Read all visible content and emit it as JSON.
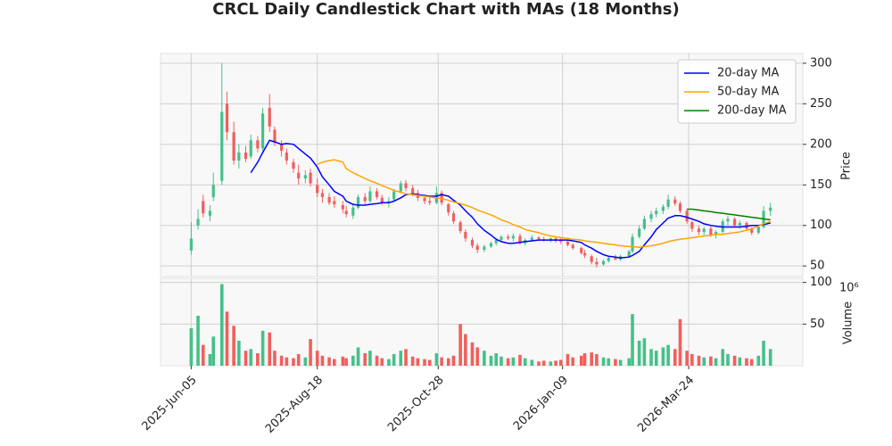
{
  "chart_data": {
    "type": "candlestick",
    "title": "CRCL Daily Candlestick Chart with MAs (18 Months)",
    "ylabel": "Price",
    "x": [
      "2025-06-05",
      "2025-06-09",
      "2025-06-12",
      "2025-06-16",
      "2025-06-18",
      "2025-06-23",
      "2025-06-26",
      "2025-06-30",
      "2025-07-03",
      "2025-07-07",
      "2025-07-10",
      "2025-07-14",
      "2025-07-17",
      "2025-07-21",
      "2025-07-24",
      "2025-07-28",
      "2025-07-31",
      "2025-08-04",
      "2025-08-07",
      "2025-08-11",
      "2025-08-14",
      "2025-08-18",
      "2025-08-21",
      "2025-08-25",
      "2025-08-28",
      "2025-09-02",
      "2025-09-04",
      "2025-09-08",
      "2025-09-11",
      "2025-09-15",
      "2025-09-18",
      "2025-09-22",
      "2025-09-25",
      "2025-09-29",
      "2025-10-02",
      "2025-10-06",
      "2025-10-09",
      "2025-10-13",
      "2025-10-16",
      "2025-10-20",
      "2025-10-23",
      "2025-10-27",
      "2025-10-30",
      "2025-11-03",
      "2025-11-06",
      "2025-11-10",
      "2025-11-13",
      "2025-11-17",
      "2025-11-20",
      "2025-11-24",
      "2025-11-28",
      "2025-12-01",
      "2025-12-04",
      "2025-12-08",
      "2025-12-11",
      "2025-12-15",
      "2025-12-18",
      "2025-12-22",
      "2025-12-26",
      "2025-12-29",
      "2026-01-02",
      "2026-01-05",
      "2026-01-08",
      "2026-01-12",
      "2026-01-15",
      "2026-01-20",
      "2026-01-22",
      "2026-01-26",
      "2026-01-29",
      "2026-02-02",
      "2026-02-05",
      "2026-02-09",
      "2026-02-12",
      "2026-02-17",
      "2026-02-19",
      "2026-02-23",
      "2026-02-26",
      "2026-03-02",
      "2026-03-05",
      "2026-03-09",
      "2026-03-12",
      "2026-03-16",
      "2026-03-19",
      "2026-03-23",
      "2026-03-26",
      "2026-03-30",
      "2026-04-02",
      "2026-04-06",
      "2026-04-09",
      "2026-04-13",
      "2026-04-16",
      "2026-04-20",
      "2026-04-23",
      "2026-04-27",
      "2026-04-30",
      "2026-05-04",
      "2026-05-07",
      "2026-05-11"
    ],
    "open": [
      69,
      100,
      130,
      112,
      135,
      155,
      250,
      215,
      180,
      190,
      185,
      205,
      195,
      245,
      218,
      200,
      190,
      178,
      165,
      158,
      165,
      150,
      140,
      135,
      130,
      125,
      118,
      112,
      122,
      135,
      130,
      142,
      134,
      128,
      132,
      142,
      152,
      146,
      140,
      134,
      130,
      128,
      140,
      126,
      115,
      104,
      92,
      82,
      75,
      70,
      74,
      78,
      82,
      86,
      84,
      87,
      78,
      82,
      85,
      83,
      82,
      84,
      81,
      80,
      76,
      72,
      66,
      62,
      55,
      52,
      56,
      60,
      58,
      62,
      68,
      86,
      96,
      108,
      114,
      118,
      123,
      132,
      127,
      118,
      104,
      96,
      92,
      96,
      88,
      92,
      105,
      108,
      100,
      103,
      96,
      91,
      98,
      118
    ],
    "high": [
      104,
      120,
      138,
      125,
      165,
      300,
      265,
      228,
      200,
      198,
      212,
      210,
      245,
      262,
      222,
      205,
      195,
      182,
      175,
      168,
      170,
      158,
      145,
      140,
      136,
      130,
      124,
      125,
      138,
      140,
      148,
      146,
      138,
      135,
      145,
      155,
      156,
      150,
      144,
      138,
      135,
      148,
      143,
      128,
      118,
      106,
      95,
      85,
      78,
      76,
      80,
      84,
      88,
      89,
      90,
      90,
      84,
      88,
      87,
      86,
      85,
      86,
      84,
      82,
      78,
      74,
      70,
      64,
      60,
      58,
      62,
      64,
      64,
      70,
      90,
      100,
      112,
      118,
      122,
      126,
      138,
      136,
      130,
      120,
      106,
      100,
      98,
      99,
      94,
      108,
      112,
      110,
      106,
      105,
      98,
      100,
      124,
      128
    ],
    "low": [
      64,
      95,
      110,
      105,
      130,
      150,
      205,
      175,
      170,
      178,
      182,
      190,
      192,
      215,
      198,
      185,
      175,
      165,
      150,
      152,
      148,
      135,
      128,
      125,
      122,
      115,
      110,
      108,
      120,
      126,
      128,
      132,
      125,
      122,
      130,
      140,
      142,
      136,
      130,
      126,
      125,
      126,
      125,
      112,
      102,
      90,
      80,
      72,
      66,
      67,
      72,
      75,
      80,
      82,
      80,
      76,
      75,
      80,
      81,
      80,
      79,
      79,
      77,
      74,
      70,
      64,
      60,
      52,
      48,
      50,
      54,
      57,
      56,
      60,
      66,
      84,
      94,
      104,
      110,
      114,
      120,
      124,
      115,
      102,
      92,
      88,
      88,
      86,
      84,
      90,
      100,
      98,
      96,
      94,
      88,
      89,
      96,
      112
    ],
    "close": [
      84,
      108,
      115,
      118,
      150,
      240,
      215,
      180,
      190,
      182,
      205,
      195,
      238,
      222,
      202,
      192,
      180,
      170,
      158,
      162,
      152,
      140,
      135,
      128,
      126,
      120,
      114,
      122,
      135,
      130,
      142,
      135,
      128,
      130,
      142,
      152,
      146,
      140,
      134,
      130,
      128,
      140,
      128,
      116,
      105,
      93,
      84,
      75,
      70,
      74,
      78,
      82,
      86,
      84,
      87,
      78,
      82,
      85,
      83,
      82,
      84,
      81,
      80,
      76,
      72,
      66,
      63,
      55,
      52,
      56,
      60,
      58,
      62,
      68,
      86,
      96,
      108,
      114,
      118,
      123,
      132,
      127,
      118,
      105,
      96,
      92,
      96,
      88,
      92,
      105,
      108,
      100,
      103,
      96,
      91,
      98,
      118,
      122
    ],
    "up_color": "#45c08a",
    "down_color": "#f25f5c",
    "series": [
      {
        "name": "20-day MA",
        "color": "blue",
        "values": [
          null,
          null,
          null,
          null,
          null,
          null,
          null,
          null,
          null,
          null,
          165,
          178,
          190,
          205,
          203,
          200,
          201,
          200,
          195,
          188,
          183,
          172,
          160,
          150,
          142,
          136,
          130,
          126,
          125,
          125,
          126,
          127,
          128,
          128,
          130,
          134,
          138,
          139,
          138,
          137,
          136,
          136,
          138,
          136,
          131,
          125,
          118,
          110,
          102,
          94,
          88,
          83,
          80,
          78,
          78,
          79,
          80,
          81,
          82,
          82,
          82,
          82,
          82,
          82,
          81,
          79,
          76,
          72,
          68,
          64,
          62,
          61,
          60,
          61,
          63,
          68,
          76,
          86,
          95,
          103,
          109,
          112,
          112,
          110,
          108,
          105,
          102,
          100,
          99,
          98,
          98,
          98,
          98,
          99,
          100,
          100,
          101,
          103
        ]
      },
      {
        "name": "50-day MA",
        "color": "orange",
        "values": [
          null,
          null,
          null,
          null,
          null,
          null,
          null,
          null,
          null,
          null,
          null,
          null,
          null,
          null,
          null,
          null,
          null,
          null,
          null,
          null,
          null,
          175,
          178,
          180,
          181,
          178,
          170,
          165,
          162,
          158,
          155,
          152,
          149,
          146,
          143,
          141,
          139,
          138,
          137,
          136,
          135,
          134,
          133,
          131,
          129,
          127,
          125,
          122,
          119,
          116,
          113,
          110,
          107,
          104,
          101,
          98,
          95,
          93,
          91,
          89,
          87,
          86,
          85,
          84,
          83,
          82,
          81,
          80,
          79,
          78,
          77,
          76,
          75,
          74,
          74,
          73,
          74,
          75,
          76,
          78,
          80,
          82,
          83,
          84,
          85,
          86,
          87,
          88,
          89,
          89,
          90,
          91,
          92,
          94,
          96,
          99,
          102,
          105
        ]
      },
      {
        "name": "200-day MA",
        "color": "green",
        "values": [
          null,
          null,
          null,
          null,
          null,
          null,
          null,
          null,
          null,
          null,
          null,
          null,
          null,
          null,
          null,
          null,
          null,
          null,
          null,
          null,
          null,
          null,
          null,
          null,
          null,
          null,
          null,
          null,
          null,
          null,
          null,
          null,
          null,
          null,
          null,
          null,
          null,
          null,
          null,
          null,
          null,
          null,
          null,
          null,
          null,
          null,
          null,
          null,
          null,
          null,
          null,
          null,
          null,
          null,
          null,
          null,
          null,
          null,
          null,
          null,
          null,
          null,
          null,
          null,
          null,
          null,
          null,
          null,
          null,
          null,
          null,
          null,
          null,
          null,
          null,
          null,
          null,
          null,
          null,
          null,
          null,
          null,
          null,
          120,
          120,
          119,
          118,
          117,
          116,
          115,
          114,
          113,
          112,
          111,
          110,
          109,
          108,
          107
        ]
      }
    ],
    "xlim": [
      "2025-05-18",
      "2026-05-30"
    ],
    "xticks": [
      {
        "value": "2025-06-05",
        "label": "2025-Jun-05"
      },
      {
        "value": "2025-08-18",
        "label": "2025-Aug-18"
      },
      {
        "value": "2025-10-28",
        "label": "2025-Oct-28"
      },
      {
        "value": "2026-01-09",
        "label": "2026-Jan-09"
      },
      {
        "value": "2026-03-24",
        "label": "2026-Mar-24"
      }
    ],
    "ylim": [
      37,
      312
    ],
    "yticks": [
      50,
      100,
      150,
      200,
      250,
      300
    ],
    "volume": {
      "ylabel": "Volume",
      "unit_label": "10⁶",
      "ylim": [
        0,
        105
      ],
      "yticks": [
        50,
        100
      ],
      "values": [
        45,
        60,
        25,
        14,
        35,
        98,
        65,
        48,
        30,
        18,
        20,
        15,
        42,
        40,
        18,
        12,
        10,
        9,
        14,
        10,
        32,
        18,
        12,
        10,
        8,
        11,
        9,
        12,
        22,
        15,
        18,
        12,
        9,
        8,
        14,
        18,
        20,
        11,
        9,
        8,
        7,
        15,
        10,
        9,
        12,
        50,
        38,
        28,
        22,
        18,
        12,
        15,
        11,
        9,
        10,
        13,
        9,
        7,
        5,
        6,
        5,
        6,
        7,
        14,
        10,
        12,
        15,
        16,
        14,
        10,
        9,
        8,
        7,
        9,
        62,
        30,
        33,
        20,
        18,
        22,
        25,
        20,
        56,
        18,
        14,
        12,
        10,
        11,
        9,
        20,
        14,
        12,
        10,
        9,
        8,
        12,
        30,
        20
      ]
    },
    "grid": true,
    "legend": "upper right"
  }
}
